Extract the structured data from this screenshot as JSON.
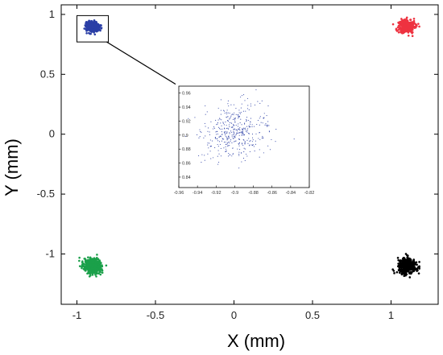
{
  "chart_data": {
    "type": "scatter",
    "xlabel": "X (mm)",
    "ylabel": "Y (mm)",
    "xlim": [
      -1.1,
      1.3
    ],
    "ylim": [
      -1.42,
      1.08
    ],
    "xticks": [
      -1,
      -0.5,
      0,
      0.5,
      1
    ],
    "yticks": [
      -1,
      -0.5,
      0,
      0.5,
      1
    ],
    "xtick_labels": [
      "-1",
      "-0.5",
      "0",
      "0.5",
      "1"
    ],
    "ytick_labels": [
      "-1",
      "-0.5",
      "0",
      "0.5",
      "1"
    ],
    "grid": false,
    "clusters": [
      {
        "color": "#2b3fa6",
        "center": [
          -0.9,
          0.9
        ],
        "spread": 0.02,
        "count": 420
      },
      {
        "color": "#ee3340",
        "center": [
          1.1,
          0.9
        ],
        "spread": 0.025,
        "count": 420
      },
      {
        "color": "#1ba04a",
        "center": [
          -0.9,
          -1.1
        ],
        "spread": 0.03,
        "count": 420
      },
      {
        "color": "#000000",
        "center": [
          1.1,
          -1.1
        ],
        "spread": 0.03,
        "count": 420
      }
    ],
    "zoom_box": {
      "x": [
        -1.0,
        -0.8
      ],
      "y": [
        0.77,
        0.99
      ]
    },
    "inset": {
      "type": "scatter",
      "xlim": [
        -0.96,
        -0.82
      ],
      "ylim": [
        0.825,
        0.97
      ],
      "xticks": [
        -0.96,
        -0.94,
        -0.92,
        -0.9,
        -0.88,
        -0.86,
        -0.84,
        -0.82
      ],
      "yticks": [
        0.84,
        0.86,
        0.88,
        0.9,
        0.92,
        0.94,
        0.96
      ],
      "xtick_labels": [
        "-0.96",
        "-0.94",
        "-0.92",
        "-0.9",
        "-0.88",
        "-0.86",
        "-0.84",
        "-0.82"
      ],
      "ytick_labels": [
        "0.84",
        "0.86",
        "0.88",
        "0.9",
        "0.92",
        "0.94",
        "0.96"
      ],
      "color": "#2b3fa6",
      "center": [
        -0.9,
        0.905
      ],
      "spread": 0.018,
      "count": 420
    }
  }
}
